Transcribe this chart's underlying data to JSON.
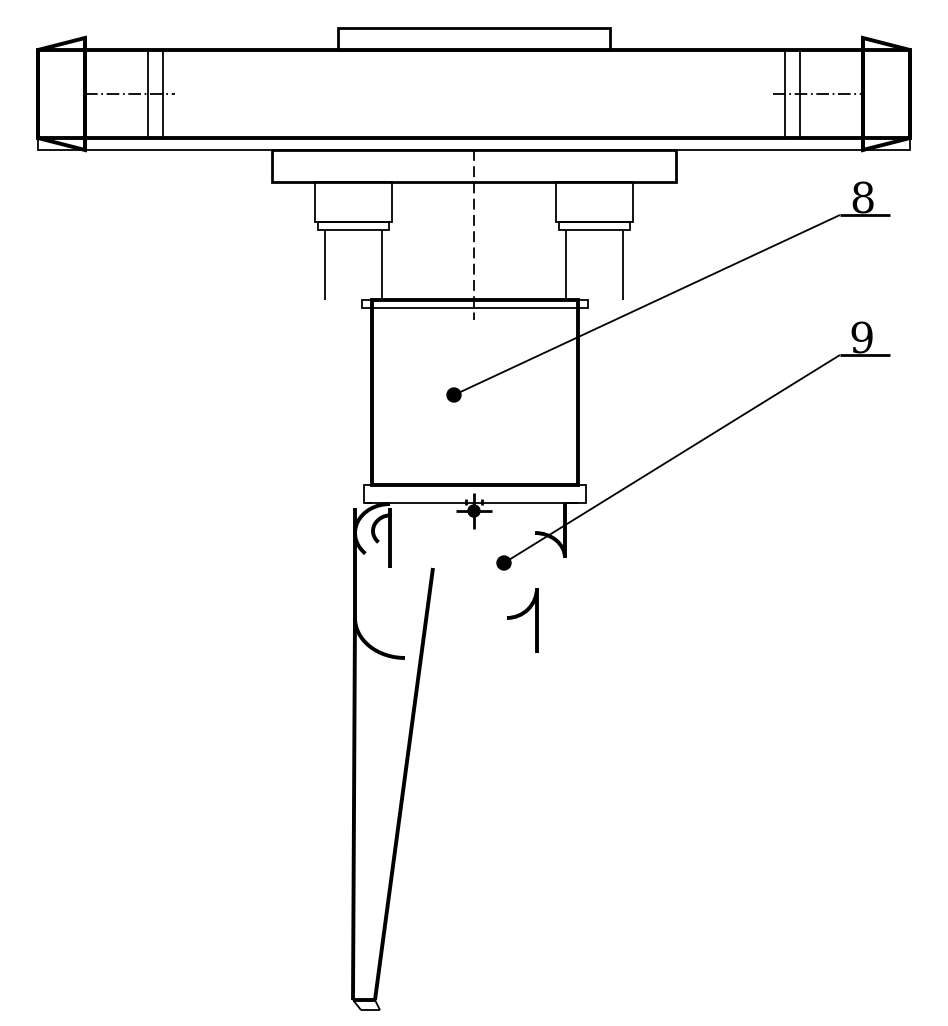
{
  "bg_color": "#ffffff",
  "line_color": "#000000",
  "label_8": "8",
  "label_9": "9",
  "figsize": [
    9.48,
    10.26
  ],
  "dpi": 100,
  "lw_thin": 1.3,
  "lw_med": 2.0,
  "lw_thick": 2.8
}
